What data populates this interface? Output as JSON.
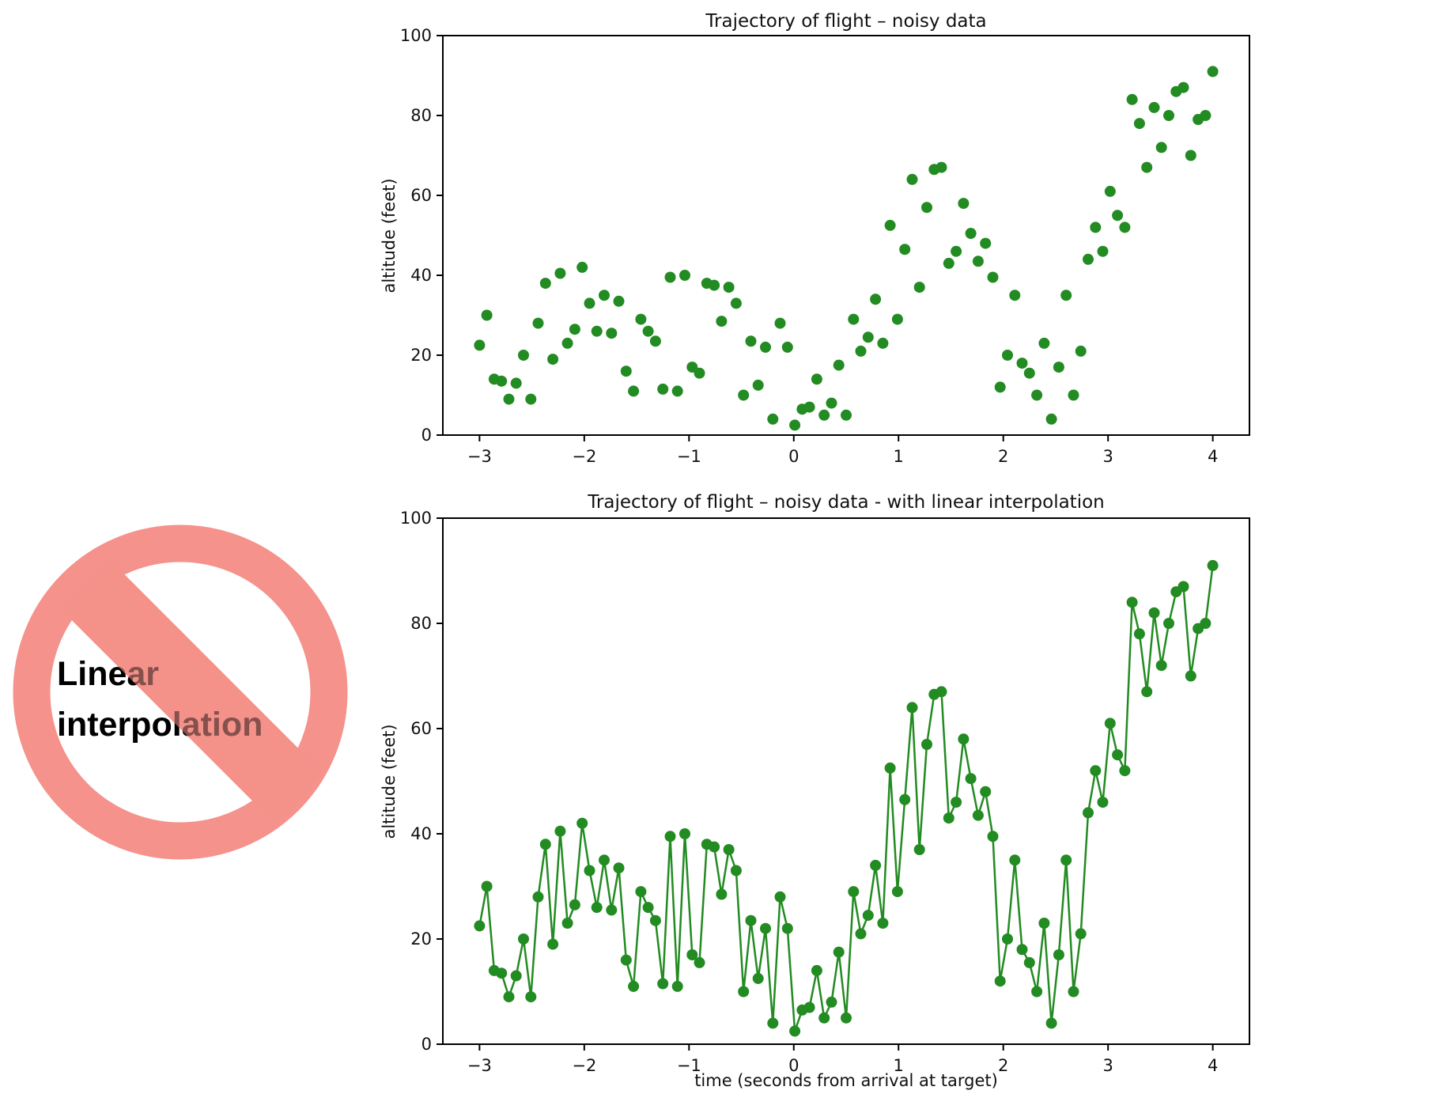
{
  "annotation": {
    "line1": "Linear",
    "line2": "interpolation",
    "symbol": "no-symbol",
    "symbol_color": "#F4928B",
    "text_color": "#000000"
  },
  "chart_data": [
    {
      "type": "scatter",
      "title": "Trajectory of flight  –  noisy data",
      "xlabel": "",
      "ylabel": "altitude (feet)",
      "xlim": [
        -3.35,
        4.35
      ],
      "ylim": [
        0,
        100
      ],
      "xticks": [
        -3,
        -2,
        -1,
        0,
        1,
        2,
        3,
        4
      ],
      "yticks": [
        0,
        20,
        40,
        60,
        80,
        100
      ],
      "grid": false,
      "legend": "none",
      "marker_color": "#228B22",
      "x": {
        "start": -3,
        "end": 4,
        "count": 101
      },
      "y": [
        22.5,
        30,
        14,
        13.5,
        9,
        13,
        20,
        9,
        28,
        38,
        19,
        40.5,
        23,
        26.5,
        42,
        33,
        26,
        35,
        25.5,
        33.5,
        16,
        11,
        29,
        26,
        23.5,
        11.5,
        39.5,
        11,
        40,
        17,
        15.5,
        38,
        37.5,
        28.5,
        37,
        33,
        10,
        23.5,
        12.5,
        22,
        4,
        28,
        22,
        2.5,
        6.5,
        7,
        14,
        5,
        8,
        17.5,
        5,
        29,
        21,
        24.5,
        34,
        23,
        52.5,
        29,
        46.5,
        64,
        37,
        57,
        66.5,
        67,
        43,
        46,
        58,
        50.5,
        43.5,
        48,
        39.5,
        12,
        20,
        35,
        18,
        15.5,
        10,
        23,
        4,
        17,
        35,
        10,
        21,
        44,
        52,
        46,
        61,
        55,
        52,
        84,
        78,
        67,
        82,
        72,
        80,
        86,
        87,
        70,
        79,
        80,
        91
      ]
    },
    {
      "type": "line",
      "title": "Trajectory of flight  –  noisy data - with linear interpolation",
      "xlabel": "time (seconds from arrival at target)",
      "ylabel": "altitude (feet)",
      "xlim": [
        -3.35,
        4.35
      ],
      "ylim": [
        0,
        100
      ],
      "xticks": [
        -3,
        -2,
        -1,
        0,
        1,
        2,
        3,
        4
      ],
      "yticks": [
        0,
        20,
        40,
        60,
        80,
        100
      ],
      "grid": false,
      "legend": "none",
      "marker_color": "#228B22",
      "line_color": "#228B22",
      "x": {
        "start": -3,
        "end": 4,
        "count": 101
      },
      "y": [
        22.5,
        30,
        14,
        13.5,
        9,
        13,
        20,
        9,
        28,
        38,
        19,
        40.5,
        23,
        26.5,
        42,
        33,
        26,
        35,
        25.5,
        33.5,
        16,
        11,
        29,
        26,
        23.5,
        11.5,
        39.5,
        11,
        40,
        17,
        15.5,
        38,
        37.5,
        28.5,
        37,
        33,
        10,
        23.5,
        12.5,
        22,
        4,
        28,
        22,
        2.5,
        6.5,
        7,
        14,
        5,
        8,
        17.5,
        5,
        29,
        21,
        24.5,
        34,
        23,
        52.5,
        29,
        46.5,
        64,
        37,
        57,
        66.5,
        67,
        43,
        46,
        58,
        50.5,
        43.5,
        48,
        39.5,
        12,
        20,
        35,
        18,
        15.5,
        10,
        23,
        4,
        17,
        35,
        10,
        21,
        44,
        52,
        46,
        61,
        55,
        52,
        84,
        78,
        67,
        82,
        72,
        80,
        86,
        87,
        70,
        79,
        80,
        91
      ]
    }
  ]
}
